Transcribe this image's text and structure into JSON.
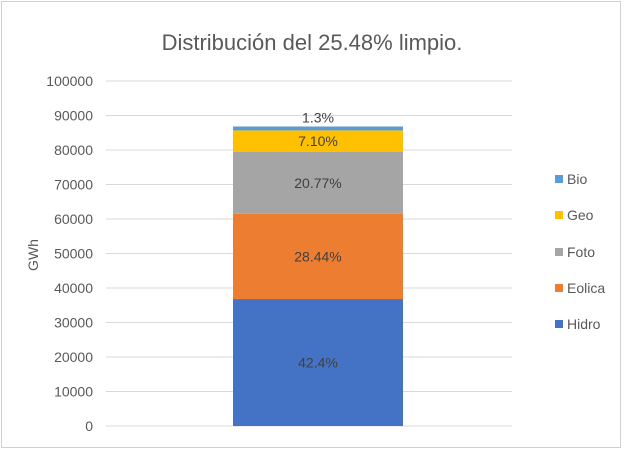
{
  "chart_data": {
    "type": "bar",
    "stacked": true,
    "title": "Distribución del 25.48% limpio.",
    "xlabel": "",
    "ylabel": "GWh",
    "ylim": [
      0,
      100000
    ],
    "yticks": [
      0,
      10000,
      20000,
      30000,
      40000,
      50000,
      60000,
      70000,
      80000,
      90000,
      100000
    ],
    "grid": true,
    "legend_position": "right",
    "categories": [
      ""
    ],
    "series": [
      {
        "name": "Hidro",
        "values": [
          36800
        ],
        "label": "42.4%",
        "color": "#4472C4"
      },
      {
        "name": "Eolica",
        "values": [
          24690
        ],
        "label": "28.44%",
        "color": "#ED7D31"
      },
      {
        "name": "Foto",
        "values": [
          18030
        ],
        "label": "20.77%",
        "color": "#A5A5A5"
      },
      {
        "name": "Geo",
        "values": [
          6160
        ],
        "label": "7.10%",
        "color": "#FFC000"
      },
      {
        "name": "Bio",
        "values": [
          1130
        ],
        "label": "1.3%",
        "color": "#5B9BD5"
      }
    ]
  }
}
